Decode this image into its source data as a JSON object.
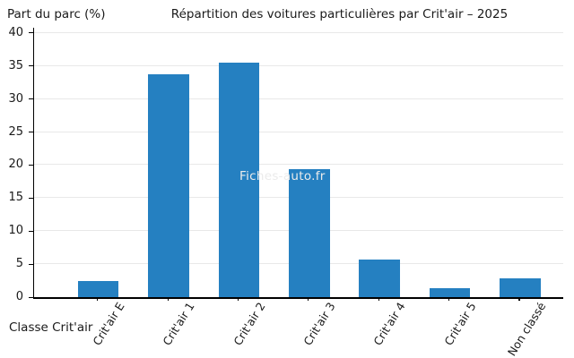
{
  "watermark": "Fiches-auto.fr",
  "chart_data": {
    "type": "bar",
    "title": "Répartition des voitures particulières par Crit'air – 2025",
    "ylabel": "Part du parc (%)",
    "xlabel": "Classe Crit'air",
    "categories": [
      "Crit'air E",
      "Crit'air 1",
      "Crit'air 2",
      "Crit'air 3",
      "Crit'air 4",
      "Crit'air 5",
      "Non classé"
    ],
    "values": [
      2.4,
      33.7,
      35.5,
      19.4,
      5.7,
      1.4,
      2.8
    ],
    "y_ticks": [
      0,
      5,
      10,
      15,
      20,
      25,
      30,
      35,
      40
    ],
    "ylim": [
      0,
      40
    ],
    "bar_color": "#2580c1",
    "grid": true,
    "legend": "none"
  }
}
